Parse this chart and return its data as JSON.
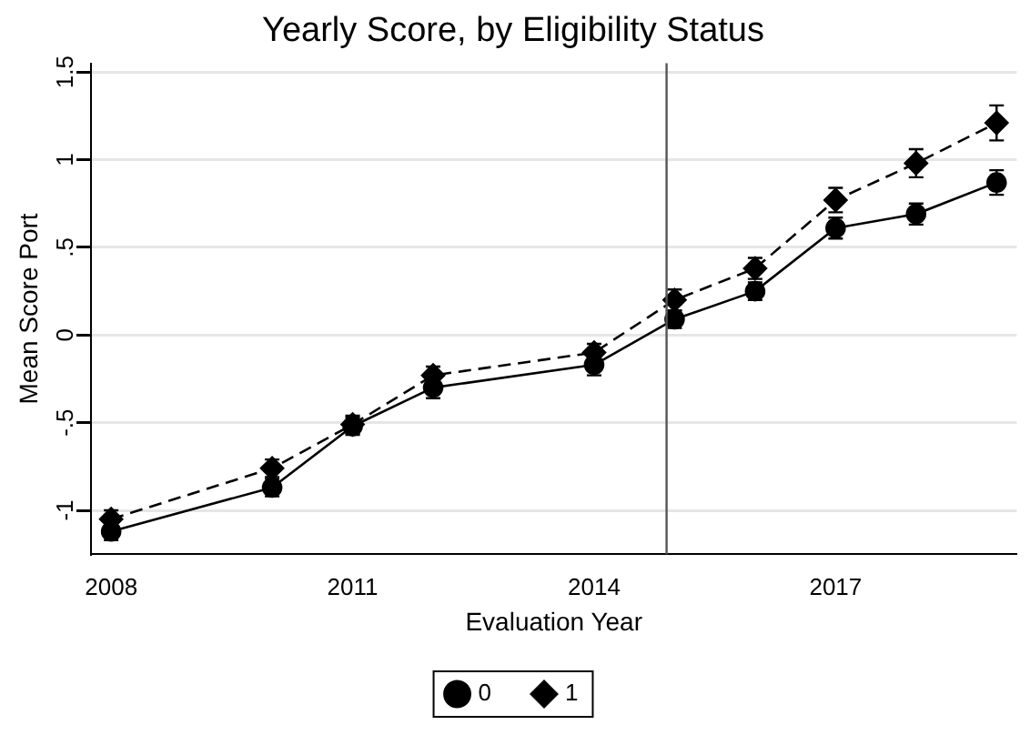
{
  "chart_data": {
    "type": "line",
    "title": "Yearly Score, by Eligibility Status",
    "xlabel": "Evaluation Year",
    "ylabel": "Mean Score Port",
    "x": [
      2008,
      2010,
      2011,
      2012,
      2014,
      2015,
      2016,
      2017,
      2018,
      2019
    ],
    "series": [
      {
        "name": "0",
        "color": "#000000",
        "marker": "circle",
        "line_style": "solid",
        "values": [
          -1.12,
          -0.87,
          -0.52,
          -0.3,
          -0.17,
          0.09,
          0.25,
          0.61,
          0.69,
          0.87
        ],
        "errors": [
          0.05,
          0.05,
          0.05,
          0.06,
          0.06,
          0.05,
          0.05,
          0.06,
          0.06,
          0.07
        ]
      },
      {
        "name": "1",
        "color": "#000000",
        "marker": "diamond",
        "line_style": "dashed",
        "values": [
          -1.05,
          -0.76,
          -0.51,
          -0.23,
          -0.1,
          0.2,
          0.38,
          0.77,
          0.98,
          1.21
        ],
        "errors": [
          0.05,
          0.05,
          0.05,
          0.05,
          0.05,
          0.06,
          0.06,
          0.07,
          0.08,
          0.1
        ]
      }
    ],
    "xlim": [
      2007.75,
      2019.25
    ],
    "xticks": [
      2008,
      2011,
      2014,
      2017
    ],
    "ylim": [
      -1.25,
      1.55
    ],
    "yticks": [
      {
        "value": -1,
        "label": "-1"
      },
      {
        "value": -0.5,
        "label": "-.5"
      },
      {
        "value": 0,
        "label": "0"
      },
      {
        "value": 0.5,
        "label": ".5"
      },
      {
        "value": 1,
        "label": "1"
      },
      {
        "value": 1.5,
        "label": "1.5"
      }
    ],
    "ref_lines": [
      {
        "axis": "x",
        "value": 2014.9,
        "color": "#555555"
      }
    ],
    "grid": "y",
    "legend": "bottom"
  }
}
